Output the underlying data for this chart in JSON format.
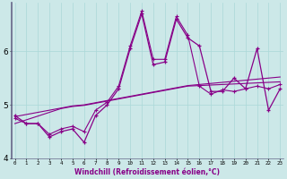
{
  "xlabel": "Windchill (Refroidissement éolien,°C)",
  "background_color": "#cce8e8",
  "line_color": "#880088",
  "x": [
    0,
    1,
    2,
    3,
    4,
    5,
    6,
    7,
    8,
    9,
    10,
    11,
    12,
    13,
    14,
    15,
    16,
    17,
    18,
    19,
    20,
    21,
    22,
    23
  ],
  "y_main": [
    4.8,
    4.65,
    4.65,
    4.4,
    4.5,
    4.55,
    4.3,
    4.8,
    5.0,
    5.3,
    6.05,
    6.7,
    5.75,
    5.8,
    6.6,
    6.25,
    6.1,
    5.25,
    5.25,
    5.5,
    5.3,
    6.05,
    4.9,
    5.3
  ],
  "y_line2": [
    4.75,
    4.65,
    4.65,
    4.45,
    4.55,
    4.6,
    4.5,
    4.9,
    5.05,
    5.35,
    6.1,
    6.75,
    5.85,
    5.85,
    6.65,
    6.3,
    5.35,
    5.2,
    5.28,
    5.25,
    5.3,
    5.35,
    5.3,
    5.38
  ],
  "y_trend1": [
    4.65,
    4.72,
    4.79,
    4.86,
    4.93,
    4.97,
    4.99,
    5.03,
    5.07,
    5.11,
    5.15,
    5.19,
    5.23,
    5.27,
    5.31,
    5.35,
    5.36,
    5.37,
    5.38,
    5.39,
    5.4,
    5.41,
    5.42,
    5.43
  ],
  "y_trend2": [
    4.78,
    4.82,
    4.86,
    4.9,
    4.94,
    4.98,
    5.0,
    5.04,
    5.08,
    5.12,
    5.16,
    5.2,
    5.24,
    5.28,
    5.32,
    5.36,
    5.38,
    5.4,
    5.42,
    5.44,
    5.46,
    5.48,
    5.5,
    5.52
  ],
  "ylim": [
    4.1,
    6.9
  ],
  "yticks": [
    4,
    5,
    6
  ],
  "xlim": [
    -0.3,
    23.3
  ],
  "grid_color": "#aad8d8",
  "spine_color": "#666688"
}
